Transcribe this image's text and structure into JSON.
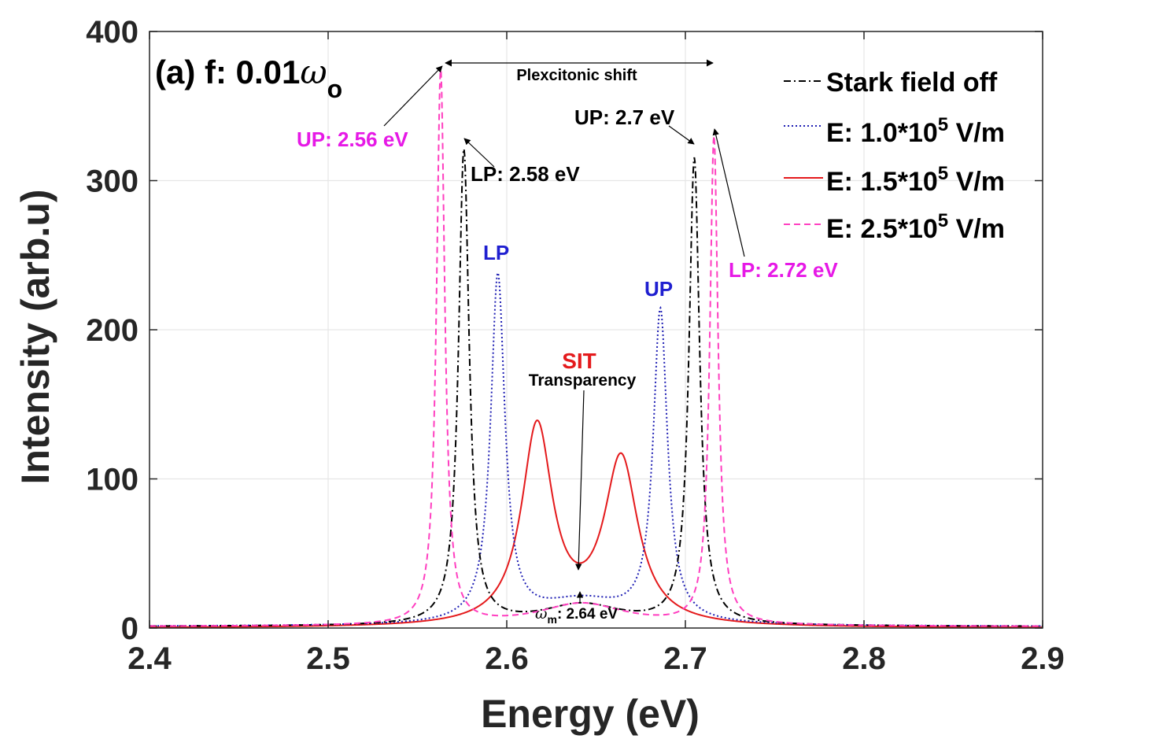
{
  "chart_data": {
    "type": "line",
    "panel_label": "(a) f: 0.01",
    "panel_symbol": "ω",
    "panel_subscript": "o",
    "xlabel": "Energy (eV)",
    "ylabel": "Intensity (arb.u)",
    "xlim": [
      2.4,
      2.9
    ],
    "ylim": [
      0,
      400
    ],
    "xticks": [
      "2.4",
      "2.5",
      "2.6",
      "2.7",
      "2.8",
      "2.9"
    ],
    "yticks": [
      "0",
      "100",
      "200",
      "300",
      "400"
    ],
    "grid": true,
    "legend_position": "top-right",
    "series": [
      {
        "id": "off",
        "name": "Stark field off",
        "color": "#000000",
        "style": "dashdot",
        "peaks": [
          {
            "x0": 2.576,
            "amp": 318,
            "gamma": 0.0036
          },
          {
            "x0": 2.705,
            "amp": 312,
            "gamma": 0.0036
          },
          {
            "x0": 2.642,
            "amp": 14,
            "gamma": 0.028
          }
        ],
        "baseline": 1
      },
      {
        "id": "e1",
        "name": "E: 1.0*10",
        "exp": "5",
        "unit": " V/m",
        "color": "#1f1fb4",
        "style": "dotted",
        "peaks": [
          {
            "x0": 2.595,
            "amp": 232,
            "gamma": 0.0048
          },
          {
            "x0": 2.686,
            "amp": 208,
            "gamma": 0.0048
          },
          {
            "x0": 2.642,
            "amp": 16,
            "gamma": 0.03
          }
        ],
        "baseline": 1
      },
      {
        "id": "e15",
        "name": "E: 1.5*10",
        "exp": "5",
        "unit": " V/m",
        "color": "#e41a1c",
        "style": "solid",
        "peaks": [
          {
            "x0": 2.617,
            "amp": 133,
            "gamma": 0.0105
          },
          {
            "x0": 2.664,
            "amp": 111,
            "gamma": 0.0115
          }
        ],
        "baseline": 0
      },
      {
        "id": "e25",
        "name": "E: 2.5*10",
        "exp": "5",
        "unit": " V/m",
        "color": "#ff3fc0",
        "style": "dashed",
        "peaks": [
          {
            "x0": 2.563,
            "amp": 372,
            "gamma": 0.0028
          },
          {
            "x0": 2.716,
            "amp": 327,
            "gamma": 0.0028
          },
          {
            "x0": 2.642,
            "amp": 15,
            "gamma": 0.03
          }
        ],
        "baseline": 1
      }
    ],
    "annotations": {
      "plex_shift": "Plexcitonic shift",
      "up_256": "UP: 2.56 eV",
      "lp_258": "LP: 2.58 eV",
      "up_27": "UP: 2.7 eV",
      "lp_272": "LP: 2.72 eV",
      "lp_blue": "LP",
      "up_blue": "UP",
      "sit": "SIT",
      "transparency": "Transparency",
      "wm_symbol": "ω",
      "wm_sub": "m",
      "wm_value": ": 2.64 eV"
    }
  }
}
